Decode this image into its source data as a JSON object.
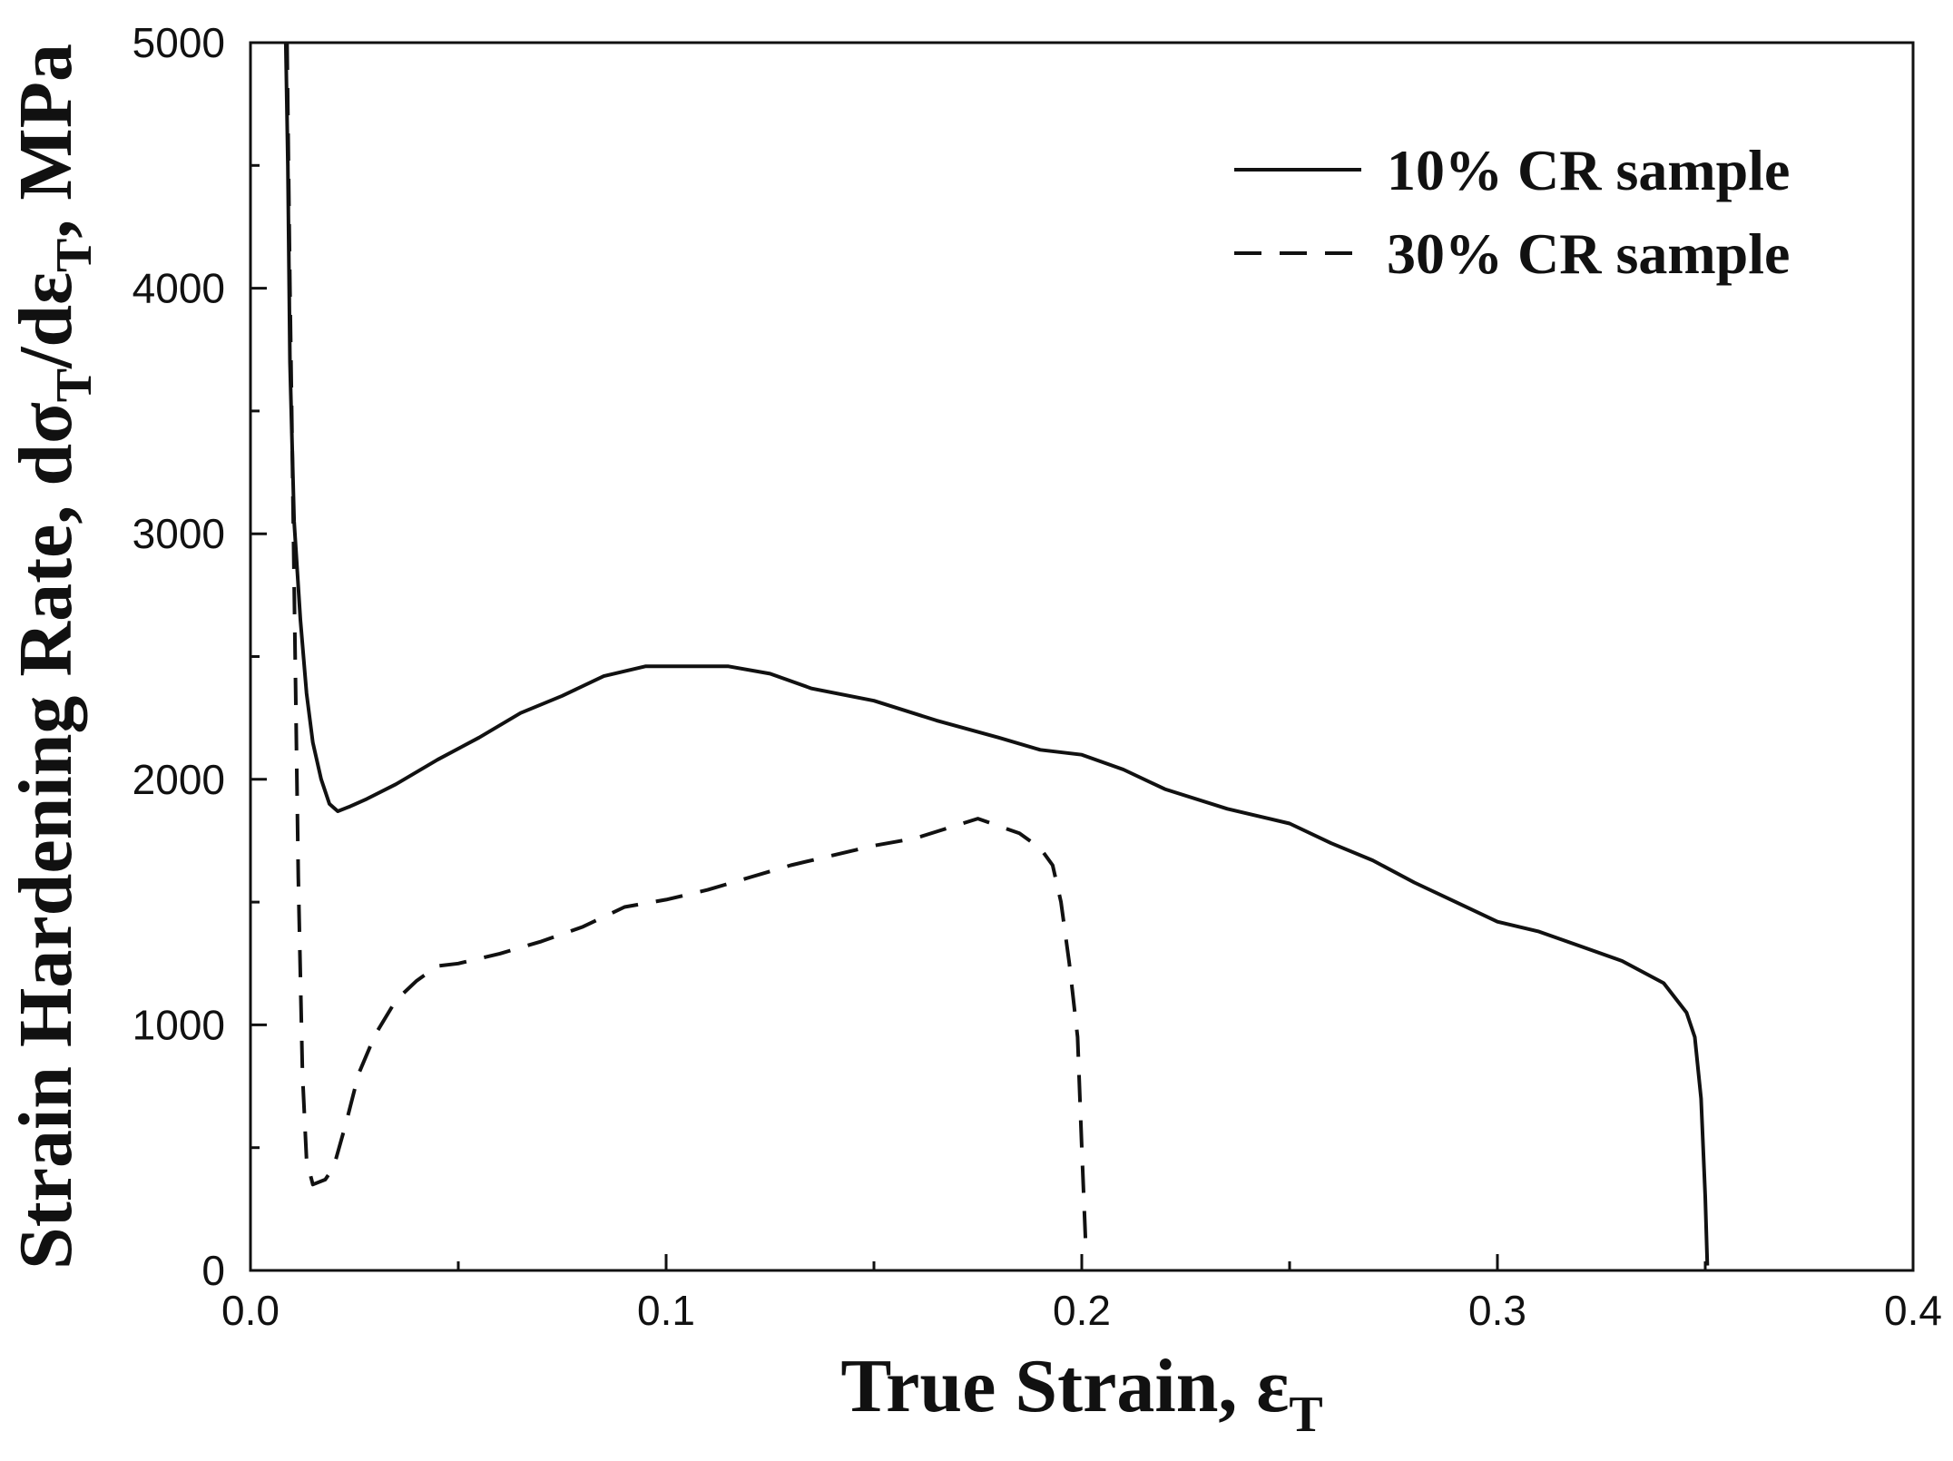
{
  "chart_data": {
    "type": "line",
    "title": "",
    "xlabel": {
      "main": "True Strain, ε",
      "sub": "T"
    },
    "ylabel": {
      "p1": "Strain Hardening Rate, dσ",
      "s1": "T",
      "p2": "/dε",
      "s2": "T",
      "p3": ", MPa"
    },
    "xlim": [
      0.0,
      0.4
    ],
    "ylim": [
      0,
      5000
    ],
    "xticks": [
      "0.0",
      "0.1",
      "0.2",
      "0.3",
      "0.4"
    ],
    "yticks": [
      "0",
      "1000",
      "2000",
      "3000",
      "4000",
      "5000"
    ],
    "grid": false,
    "legend_position": "top-right",
    "series": [
      {
        "name": "10% CR sample",
        "style": "solid",
        "x": [
          0.0085,
          0.009,
          0.0095,
          0.0105,
          0.012,
          0.0135,
          0.015,
          0.017,
          0.019,
          0.021,
          0.024,
          0.028,
          0.035,
          0.045,
          0.055,
          0.065,
          0.075,
          0.085,
          0.095,
          0.105,
          0.115,
          0.125,
          0.135,
          0.15,
          0.165,
          0.18,
          0.19,
          0.2,
          0.21,
          0.22,
          0.235,
          0.25,
          0.26,
          0.27,
          0.28,
          0.29,
          0.3,
          0.31,
          0.32,
          0.33,
          0.34,
          0.3455,
          0.3475,
          0.349,
          0.35,
          0.3505
        ],
        "values": [
          5000,
          4500,
          3700,
          3050,
          2650,
          2350,
          2150,
          2000,
          1900,
          1870,
          1890,
          1920,
          1980,
          2080,
          2170,
          2270,
          2340,
          2420,
          2460,
          2460,
          2460,
          2430,
          2370,
          2320,
          2240,
          2170,
          2120,
          2100,
          2040,
          1960,
          1880,
          1820,
          1740,
          1670,
          1580,
          1500,
          1420,
          1380,
          1320,
          1260,
          1170,
          1050,
          950,
          700,
          300,
          20
        ]
      },
      {
        "name": "30% CR sample",
        "style": "dashed",
        "x": [
          0.0088,
          0.0095,
          0.0105,
          0.0115,
          0.0125,
          0.0135,
          0.015,
          0.018,
          0.02,
          0.023,
          0.026,
          0.03,
          0.035,
          0.04,
          0.045,
          0.05,
          0.06,
          0.07,
          0.08,
          0.09,
          0.1,
          0.11,
          0.12,
          0.13,
          0.14,
          0.15,
          0.16,
          0.175,
          0.18,
          0.185,
          0.19,
          0.193,
          0.195,
          0.197,
          0.199,
          0.2,
          0.201
        ],
        "values": [
          5000,
          4000,
          2800,
          1600,
          800,
          450,
          350,
          370,
          420,
          600,
          800,
          960,
          1100,
          1180,
          1240,
          1250,
          1290,
          1340,
          1400,
          1480,
          1510,
          1550,
          1600,
          1650,
          1690,
          1730,
          1760,
          1840,
          1810,
          1780,
          1720,
          1650,
          1500,
          1250,
          950,
          500,
          80
        ]
      }
    ]
  }
}
